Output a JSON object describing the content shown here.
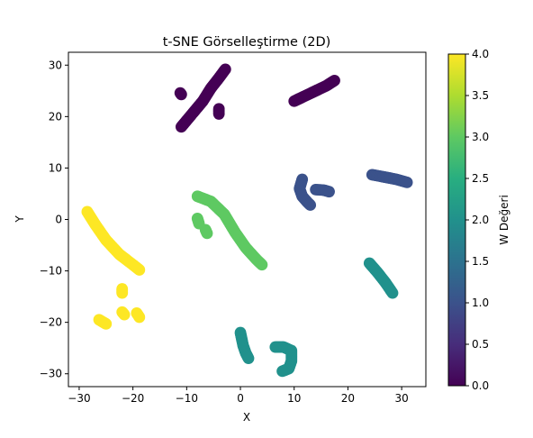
{
  "chart_data": {
    "type": "scatter",
    "title": "t-SNE Görselleştirme (2D)",
    "xlabel": "X",
    "ylabel": "Y",
    "xlim": [
      -32,
      34.5
    ],
    "ylim": [
      -32.5,
      32.5
    ],
    "xticks": [
      -30,
      -20,
      -10,
      0,
      10,
      20,
      30
    ],
    "yticks": [
      -30,
      -20,
      -10,
      0,
      10,
      20,
      30
    ],
    "grid": false,
    "colorbar": {
      "label": "W Değeri",
      "min": 0.0,
      "max": 4.0,
      "ticks": [
        "0.0",
        "0.5",
        "1.0",
        "1.5",
        "2.0",
        "2.5",
        "3.0",
        "3.5",
        "4.0"
      ],
      "colormap": "viridis"
    },
    "clusters": [
      {
        "w": 0.0,
        "points": [
          [
            -11,
            18
          ],
          [
            -9,
            20.5
          ],
          [
            -7,
            23
          ],
          [
            -5.5,
            25.5
          ],
          [
            -4,
            27.5
          ],
          [
            -2.8,
            29.2
          ]
        ]
      },
      {
        "w": 0.0,
        "points": [
          [
            -11,
            24.3
          ],
          [
            -11.2,
            24.6
          ]
        ]
      },
      {
        "w": 0.0,
        "points": [
          [
            -4,
            20.5
          ],
          [
            -4,
            21.5
          ]
        ]
      },
      {
        "w": 0.0,
        "points": [
          [
            10,
            23
          ],
          [
            12,
            24
          ],
          [
            14,
            25
          ],
          [
            16,
            26
          ],
          [
            17.5,
            27
          ]
        ]
      },
      {
        "w": 1.0,
        "points": [
          [
            11.5,
            7.8
          ],
          [
            11,
            6
          ],
          [
            11.5,
            4.5
          ],
          [
            12.5,
            3.3
          ],
          [
            13,
            2.8
          ]
        ]
      },
      {
        "w": 1.0,
        "points": [
          [
            14,
            5.8
          ],
          [
            15.5,
            5.7
          ],
          [
            16.5,
            5.4
          ]
        ]
      },
      {
        "w": 1.0,
        "points": [
          [
            24.5,
            8.7
          ],
          [
            27,
            8.2
          ],
          [
            29,
            7.8
          ],
          [
            31,
            7.2
          ]
        ]
      },
      {
        "w": 2.0,
        "points": [
          [
            24,
            -8.5
          ],
          [
            25.5,
            -10.3
          ],
          [
            27,
            -12.3
          ],
          [
            28.3,
            -14.3
          ]
        ]
      },
      {
        "w": 2.0,
        "points": [
          [
            0,
            -22
          ],
          [
            0.5,
            -24.5
          ],
          [
            1,
            -26
          ],
          [
            1.5,
            -27
          ]
        ]
      },
      {
        "w": 2.0,
        "points": [
          [
            6.5,
            -24.8
          ],
          [
            8,
            -24.8
          ],
          [
            9.5,
            -25.5
          ],
          [
            9.5,
            -27.5
          ],
          [
            9,
            -29
          ],
          [
            7.8,
            -29.5
          ]
        ]
      },
      {
        "w": 3.0,
        "points": [
          [
            -8,
            4.5
          ],
          [
            -5.5,
            3.5
          ],
          [
            -3,
            1
          ],
          [
            -1,
            -2.5
          ],
          [
            1,
            -5.5
          ],
          [
            3,
            -7.8
          ],
          [
            4,
            -8.8
          ]
        ]
      },
      {
        "w": 3.0,
        "points": [
          [
            -8,
            0.2
          ],
          [
            -7.7,
            -0.8
          ]
        ]
      },
      {
        "w": 3.0,
        "points": [
          [
            -6.5,
            -2
          ],
          [
            -6.2,
            -2.7
          ]
        ]
      },
      {
        "w": 4.0,
        "points": [
          [
            -28.5,
            1.5
          ],
          [
            -27,
            -1
          ],
          [
            -25,
            -4
          ],
          [
            -22.5,
            -6.8
          ],
          [
            -20,
            -8.8
          ],
          [
            -18.8,
            -9.8
          ]
        ]
      },
      {
        "w": 4.0,
        "points": [
          [
            -22,
            -13.5
          ],
          [
            -22,
            -14.3
          ]
        ]
      },
      {
        "w": 4.0,
        "points": [
          [
            -22,
            -18
          ],
          [
            -21.6,
            -18.5
          ]
        ]
      },
      {
        "w": 4.0,
        "points": [
          [
            -19.3,
            -18.2
          ],
          [
            -18.8,
            -19
          ]
        ]
      },
      {
        "w": 4.0,
        "points": [
          [
            -26.3,
            -19.5
          ],
          [
            -25.5,
            -20
          ],
          [
            -25,
            -20.3
          ]
        ]
      }
    ]
  }
}
